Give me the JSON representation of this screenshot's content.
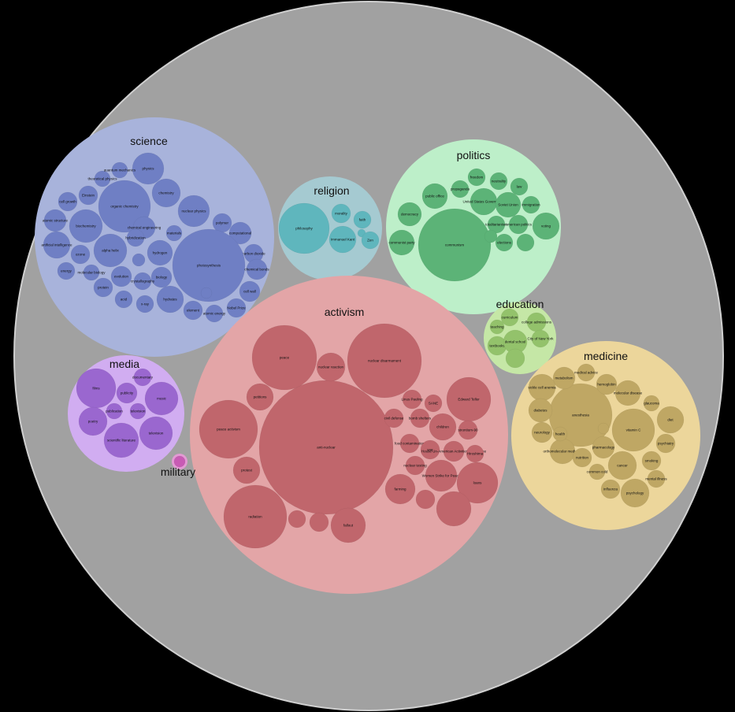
{
  "diagram": {
    "type": "circle-packing",
    "colors": {
      "background": "#000000",
      "root": "#a1a1a1",
      "root_stroke": "#d0d0d0"
    },
    "categories": [
      {
        "name": "science",
        "color": "#a8b3db",
        "node_color": "#6f7fc4",
        "nodes": [
          "physics",
          "quantum mechanics",
          "theoretical physics",
          "chemistry",
          "organic chemistry",
          "Einstein",
          "cell growth",
          "nuclear physics",
          "polymer",
          "biochemistry",
          "atomic structure",
          "chemical engineering",
          "materials",
          "computational",
          "artificial intelligence",
          "alpha helix",
          "hydrogen",
          "hybridization",
          "carbon dioxide",
          "ozone",
          "photosynthesis",
          "chemical bonds",
          "energy",
          "molecular biology",
          "biology",
          "evolution",
          "crystallography",
          "protein",
          "cell wall",
          "acid",
          "hydrates",
          "x-ray",
          "element",
          "atomic energy",
          "Nobel Prize",
          "nuclear energy",
          "genetics"
        ]
      },
      {
        "name": "religion",
        "color": "#a5cad1",
        "node_color": "#5fb6bd",
        "nodes": [
          "philosophy",
          "morality",
          "faith",
          "Immanuel Kant",
          "church",
          "Zen"
        ]
      },
      {
        "name": "politics",
        "color": "#bdefc9",
        "node_color": "#5cb377",
        "nodes": [
          "communism",
          "public office",
          "propaganda",
          "freedom",
          "neutrality",
          "law",
          "United States Government",
          "Soviet Union",
          "voting",
          "democracy",
          "communist party",
          "immigration",
          "totalitarianism",
          "American politics",
          "elections"
        ]
      },
      {
        "name": "education",
        "color": "#c5e7a6",
        "node_color": "#93c26b",
        "nodes": [
          "curriculum",
          "college admissions",
          "City of New York",
          "teaching",
          "textbooks",
          "dental school"
        ]
      },
      {
        "name": "activism",
        "color": "#e3a5a7",
        "node_color": "#c0666c",
        "nodes": [
          "anti-nuclear",
          "nuclear disarmament",
          "peace",
          "nuclear reaction",
          "peace activism",
          "petitions",
          "protest",
          "radiation",
          "fallout",
          "Edward Teller",
          "Linus Pauling",
          "SANE",
          "bomb shelters",
          "civil defense",
          "children",
          "strontium-90",
          "food contamination",
          "war",
          "House Un-American Activities Committee",
          "Hiroshima",
          "nuclear testing",
          "Women Strike for Peace",
          "farming",
          "loans"
        ]
      },
      {
        "name": "media",
        "color": "#d1adf1",
        "node_color": "#9a67cf",
        "nodes": [
          "films",
          "documentary",
          "publicity",
          "music",
          "poetry",
          "publication",
          "television",
          "scientific literature",
          "television"
        ]
      },
      {
        "name": "military",
        "color": "#e39ad4",
        "node_color": "#c85bb4",
        "nodes": [
          "military"
        ]
      },
      {
        "name": "medicine",
        "color": "#ecd69b",
        "node_color": "#bfa764",
        "nodes": [
          "anesthesia",
          "vitamin C",
          "metabolism",
          "medical advice",
          "hemoglobin",
          "molecular disease",
          "glaucoma",
          "diet",
          "sickle cell anemia",
          "diabetes",
          "neurology",
          "orthomolecular medicine",
          "nutrition",
          "pharmacology",
          "cancer",
          "smoking",
          "psychiatry",
          "common cold",
          "influenza",
          "psychology",
          "mental illness",
          "health",
          "vitamins"
        ]
      }
    ]
  }
}
